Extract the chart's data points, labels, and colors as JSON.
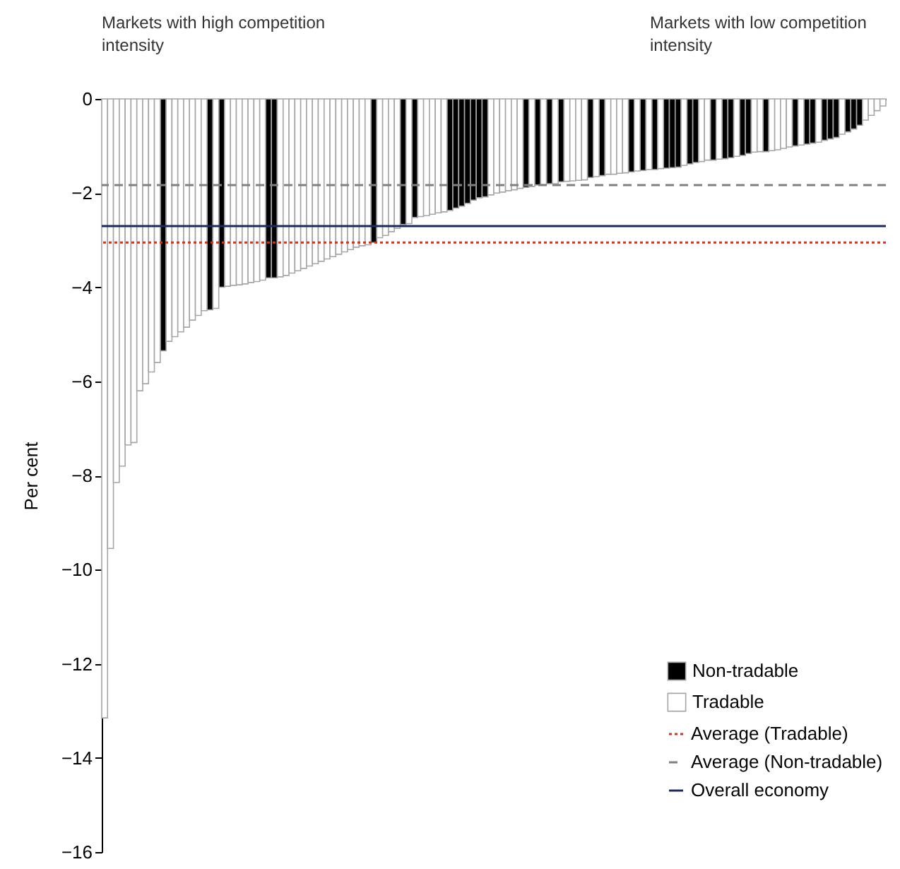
{
  "chart_data": {
    "type": "bar",
    "ylabel": "Per cent",
    "annotations": [
      "Markets with high competition intensity",
      "Markets with low competition intensity"
    ],
    "categories": [
      null,
      null,
      null,
      null,
      null,
      null,
      null,
      null,
      null,
      null,
      null,
      null,
      null,
      null,
      null,
      null,
      null,
      null,
      null,
      null,
      null,
      null,
      null,
      null,
      null,
      null,
      null,
      null,
      null,
      null,
      null,
      null,
      null,
      null,
      null,
      null,
      null,
      null,
      null,
      null,
      null,
      null,
      null,
      null,
      null,
      null,
      null,
      null,
      null,
      null,
      null,
      null,
      null,
      null,
      null,
      null,
      null,
      null,
      null,
      null,
      null,
      null,
      null,
      null,
      null,
      null,
      null,
      null,
      null,
      null,
      null,
      null,
      null,
      null,
      null,
      null,
      null,
      null,
      null,
      null,
      null,
      null,
      null,
      null,
      null,
      null,
      null,
      null,
      null,
      null,
      null,
      null,
      null,
      null,
      null,
      null,
      null,
      null,
      null,
      null,
      null,
      null,
      null,
      null,
      null,
      null,
      null,
      null,
      null,
      null,
      null,
      null,
      null,
      null,
      null,
      null,
      null,
      null,
      null,
      null,
      null,
      null,
      null,
      null,
      null,
      null,
      null,
      null,
      null,
      null,
      null,
      null,
      null,
      null
    ],
    "series": [
      {
        "name": "Non-tradable",
        "color": "#000000",
        "values": [
          null,
          null,
          null,
          null,
          null,
          null,
          null,
          null,
          null,
          null,
          -5.35,
          null,
          null,
          null,
          null,
          null,
          null,
          null,
          -4.48,
          null,
          -4.0,
          null,
          null,
          null,
          null,
          null,
          null,
          null,
          -3.8,
          -3.8,
          null,
          null,
          null,
          null,
          null,
          null,
          null,
          null,
          null,
          null,
          null,
          null,
          null,
          null,
          null,
          null,
          -3.05,
          null,
          null,
          null,
          null,
          -2.67,
          null,
          -2.52,
          null,
          null,
          null,
          null,
          null,
          -2.37,
          -2.32,
          -2.28,
          -2.22,
          -2.15,
          -2.1,
          -2.08,
          null,
          null,
          null,
          null,
          null,
          null,
          -1.88,
          null,
          -1.83,
          null,
          -1.8,
          null,
          -1.76,
          null,
          null,
          null,
          null,
          -1.67,
          null,
          -1.63,
          null,
          null,
          null,
          null,
          -1.55,
          null,
          -1.52,
          null,
          -1.5,
          null,
          -1.47,
          -1.46,
          -1.45,
          null,
          -1.38,
          -1.35,
          null,
          null,
          -1.3,
          null,
          -1.27,
          -1.25,
          null,
          -1.2,
          -1.16,
          null,
          null,
          -1.12,
          null,
          null,
          null,
          null,
          -1.0,
          null,
          -0.96,
          -0.94,
          null,
          -0.88,
          -0.85,
          -0.82,
          null,
          -0.7,
          -0.64,
          -0.56,
          null,
          null,
          null,
          null
        ]
      },
      {
        "name": "Tradable",
        "color": "#ffffff",
        "values": [
          -13.15,
          -9.55,
          -8.15,
          -7.8,
          -7.35,
          -7.3,
          -6.2,
          -6.05,
          -5.8,
          -5.6,
          null,
          -5.15,
          -5.05,
          -4.95,
          -4.85,
          -4.7,
          -4.6,
          -4.5,
          null,
          -4.45,
          null,
          -3.98,
          -3.96,
          -3.95,
          -3.93,
          -3.9,
          -3.88,
          -3.85,
          null,
          null,
          -3.78,
          -3.75,
          -3.7,
          -3.65,
          -3.6,
          -3.55,
          -3.5,
          -3.45,
          -3.4,
          -3.35,
          -3.3,
          -3.25,
          -3.2,
          -3.15,
          -3.12,
          -3.1,
          null,
          -2.95,
          -2.9,
          -2.82,
          -2.75,
          null,
          -2.65,
          null,
          -2.5,
          -2.48,
          -2.45,
          -2.42,
          -2.4,
          null,
          null,
          null,
          null,
          null,
          null,
          null,
          -2.04,
          -2.0,
          -1.98,
          -1.95,
          -1.93,
          -1.9,
          null,
          -1.86,
          null,
          -1.82,
          null,
          -1.8,
          null,
          -1.75,
          -1.74,
          -1.73,
          -1.72,
          null,
          -1.65,
          null,
          -1.6,
          -1.6,
          -1.58,
          -1.57,
          null,
          -1.53,
          null,
          -1.5,
          null,
          -1.48,
          null,
          null,
          null,
          -1.41,
          null,
          null,
          -1.33,
          -1.3,
          null,
          -1.28,
          null,
          null,
          -1.22,
          null,
          null,
          -1.13,
          -1.12,
          null,
          -1.1,
          -1.08,
          -1.05,
          -1.02,
          null,
          -0.98,
          null,
          null,
          -0.92,
          null,
          null,
          null,
          -0.75,
          null,
          null,
          null,
          -0.45,
          -0.35,
          -0.25,
          -0.15
        ]
      }
    ],
    "ylim": [
      -16,
      0
    ],
    "yticks": [
      -16,
      -14,
      -12,
      -10,
      -8,
      -6,
      -4,
      -2,
      0
    ],
    "tick_labels": "y",
    "grid": false,
    "legend": "bottom right",
    "ref_lines": [
      {
        "axis": "y",
        "value": -3.05,
        "label": "Average (Tradable)",
        "color": "#c0392b",
        "line_style": "dotted"
      },
      {
        "axis": "y",
        "value": -1.83,
        "label": "Average (Non-tradable)",
        "color": "#808080",
        "line_style": "dashed"
      },
      {
        "axis": "y",
        "value": -2.7,
        "label": "Overall economy",
        "color": "#1f2a5c",
        "line_style": "solid"
      }
    ]
  }
}
